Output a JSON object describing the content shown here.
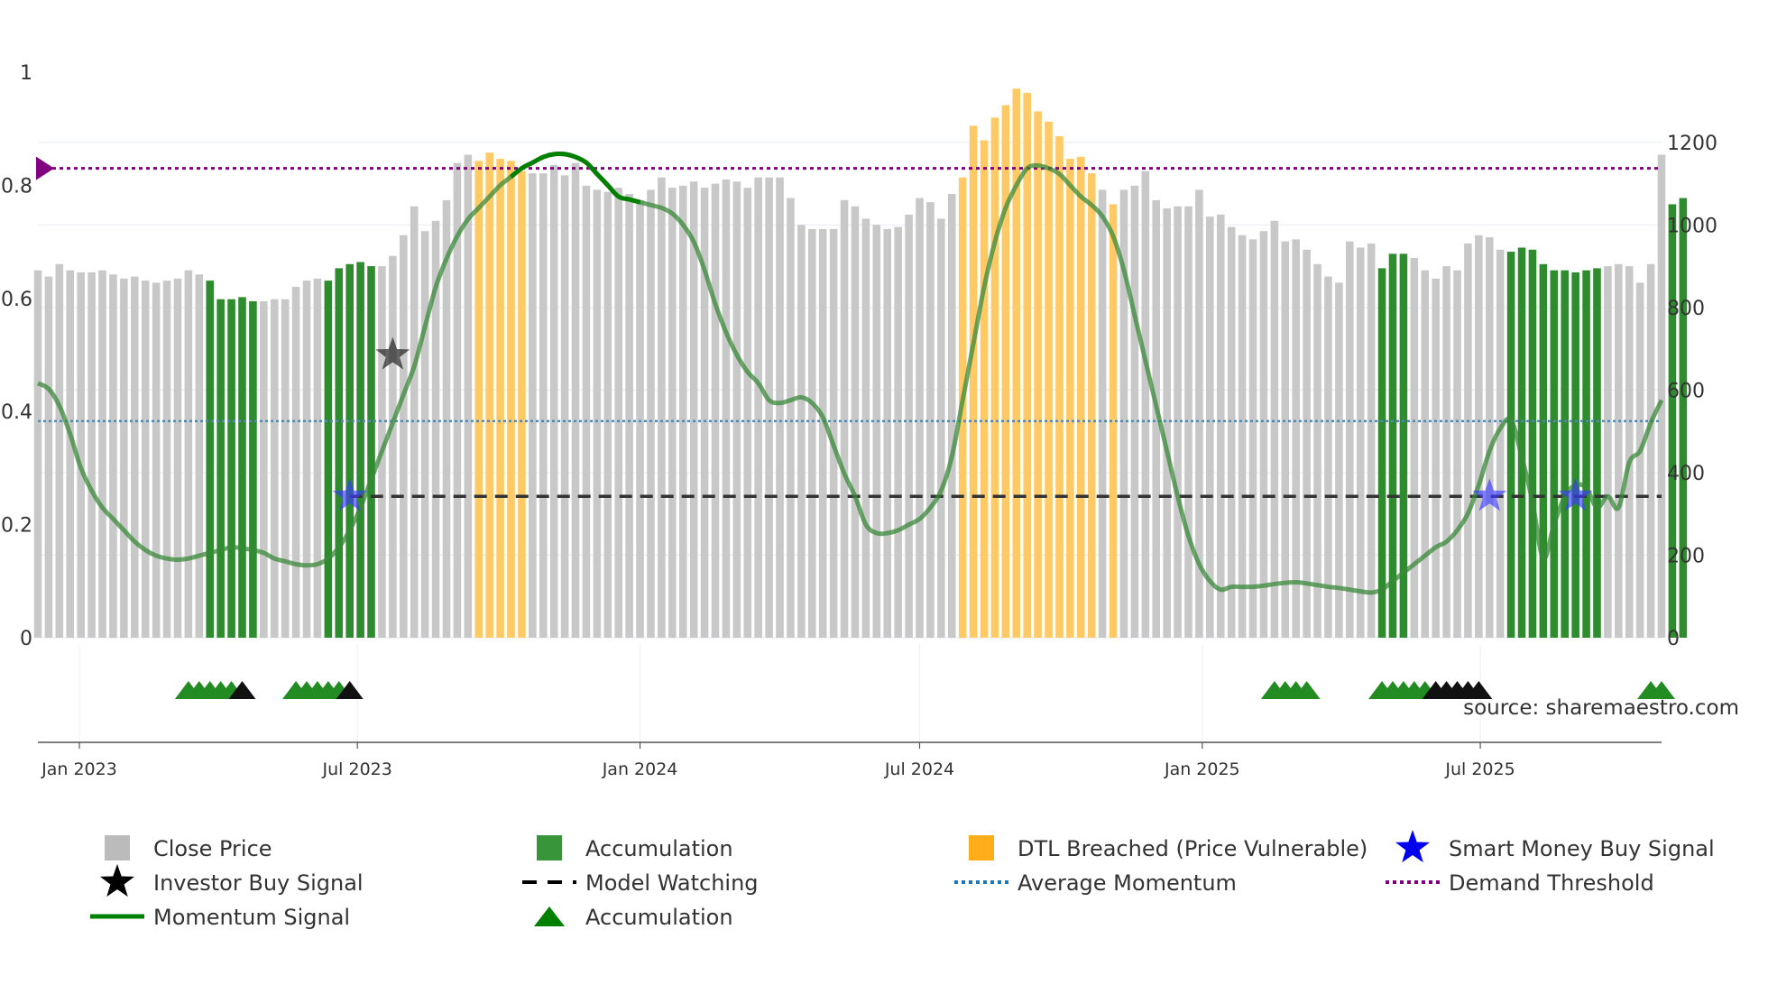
{
  "chart_data": {
    "type": "bar+line",
    "source_label": "source: sharemaestro.com",
    "colors": {
      "close": "#c8c8c8",
      "accumulation": "#2e8b2e",
      "dtl": "#ffc966",
      "momentum": "#3a8a3a",
      "momentum_bright": "#008000",
      "average_momentum": "#5588aa",
      "demand": "#800080",
      "watching": "#333333",
      "smart_star": "#3a3aff",
      "investor_star": "#222222",
      "tri_green": "#228b22",
      "tri_black": "#111111"
    },
    "left_axis": {
      "ticks": [
        0,
        0.2,
        0.4,
        0.6,
        0.8,
        1
      ],
      "labels": [
        "0",
        "0.2",
        "0.4",
        "0.6",
        "0.8",
        "1"
      ],
      "range": [
        0,
        1.0
      ]
    },
    "right_axis": {
      "ticks": [
        0,
        200,
        400,
        600,
        800,
        1000,
        1200
      ],
      "labels": [
        "0",
        "200",
        "400",
        "600",
        "800",
        "1000",
        "1200"
      ],
      "range": [
        0,
        1370
      ]
    },
    "x_axis": {
      "start": "2022-12-05",
      "end": "2025-10-27",
      "ticks": [
        "2023-01-01",
        "2023-07-01",
        "2024-01-01",
        "2024-07-01",
        "2025-01-01",
        "2025-07-01"
      ],
      "labels": [
        "Jan 2023",
        "Jul 2023",
        "Jan 2024",
        "Jul 2024",
        "Jan 2025",
        "Jul 2025"
      ]
    },
    "bar_start": "2022-12-05",
    "bar_step_days": 7,
    "close_prices": [
      890,
      875,
      905,
      890,
      885,
      885,
      890,
      880,
      870,
      875,
      865,
      860,
      865,
      870,
      890,
      880,
      865,
      820,
      820,
      825,
      815,
      815,
      820,
      820,
      850,
      865,
      870,
      865,
      895,
      905,
      910,
      900,
      900,
      925,
      975,
      1045,
      985,
      1010,
      1060,
      1150,
      1170,
      1155,
      1175,
      1160,
      1155,
      1130,
      1125,
      1125,
      1145,
      1120,
      1150,
      1095,
      1085,
      1080,
      1090,
      1075,
      1060,
      1085,
      1115,
      1090,
      1095,
      1105,
      1090,
      1100,
      1110,
      1105,
      1090,
      1115,
      1115,
      1115,
      1065,
      1000,
      990,
      990,
      990,
      1060,
      1045,
      1015,
      1000,
      990,
      995,
      1025,
      1065,
      1055,
      1015,
      1075,
      1115,
      1240,
      1205,
      1260,
      1290,
      1330,
      1320,
      1275,
      1250,
      1215,
      1160,
      1165,
      1125,
      1085,
      1050,
      1085,
      1095,
      1130,
      1060,
      1040,
      1045,
      1045,
      1085,
      1020,
      1025,
      995,
      975,
      965,
      985,
      1010,
      960,
      965,
      940,
      905,
      875,
      860,
      960,
      945,
      955,
      895,
      930,
      930,
      920,
      890,
      870,
      900,
      890,
      955,
      975,
      970,
      940,
      935,
      945,
      940,
      905,
      890,
      890,
      885,
      890,
      895,
      900,
      905,
      900,
      860,
      905,
      1170,
      1050,
      1065
    ],
    "close_tail": [
      1170,
      1050,
      1065
    ],
    "dtl_bars": [
      41,
      42,
      43,
      44,
      45,
      86,
      87,
      88,
      89,
      90,
      91,
      92,
      93,
      94,
      95,
      96,
      97,
      98,
      100
    ],
    "accumulation_bars": [
      16,
      17,
      18,
      19,
      20,
      27,
      28,
      29,
      30,
      31,
      125,
      126,
      127,
      137,
      138,
      139,
      140,
      141,
      142,
      143,
      144,
      145,
      152,
      153
    ],
    "momentum_curve": [
      [
        0,
        0.45
      ],
      [
        1,
        0.44
      ],
      [
        2,
        0.41
      ],
      [
        3,
        0.36
      ],
      [
        4,
        0.3
      ],
      [
        5,
        0.26
      ],
      [
        6,
        0.23
      ],
      [
        7,
        0.21
      ],
      [
        8,
        0.19
      ],
      [
        9,
        0.17
      ],
      [
        10,
        0.155
      ],
      [
        11,
        0.145
      ],
      [
        12,
        0.14
      ],
      [
        13,
        0.138
      ],
      [
        14,
        0.14
      ],
      [
        15,
        0.145
      ],
      [
        16,
        0.15
      ],
      [
        17,
        0.155
      ],
      [
        18,
        0.16
      ],
      [
        19,
        0.158
      ],
      [
        20,
        0.155
      ],
      [
        21,
        0.15
      ],
      [
        22,
        0.14
      ],
      [
        23,
        0.135
      ],
      [
        24,
        0.13
      ],
      [
        25,
        0.128
      ],
      [
        26,
        0.13
      ],
      [
        27,
        0.14
      ],
      [
        28,
        0.16
      ],
      [
        29,
        0.19
      ],
      [
        30,
        0.23
      ],
      [
        31,
        0.28
      ],
      [
        32,
        0.33
      ],
      [
        33,
        0.38
      ],
      [
        34,
        0.43
      ],
      [
        35,
        0.48
      ],
      [
        36,
        0.55
      ],
      [
        37,
        0.62
      ],
      [
        38,
        0.67
      ],
      [
        39,
        0.71
      ],
      [
        40,
        0.74
      ],
      [
        41,
        0.76
      ],
      [
        42,
        0.78
      ],
      [
        43,
        0.8
      ],
      [
        44,
        0.815
      ],
      [
        45,
        0.83
      ],
      [
        46,
        0.84
      ],
      [
        47,
        0.85
      ],
      [
        48,
        0.855
      ],
      [
        49,
        0.855
      ],
      [
        50,
        0.85
      ],
      [
        51,
        0.84
      ],
      [
        52,
        0.82
      ],
      [
        53,
        0.8
      ],
      [
        54,
        0.78
      ],
      [
        55,
        0.775
      ],
      [
        56,
        0.77
      ],
      [
        57,
        0.765
      ],
      [
        58,
        0.76
      ],
      [
        59,
        0.75
      ],
      [
        60,
        0.73
      ],
      [
        61,
        0.7
      ],
      [
        62,
        0.65
      ],
      [
        63,
        0.59
      ],
      [
        64,
        0.54
      ],
      [
        65,
        0.5
      ],
      [
        66,
        0.47
      ],
      [
        67,
        0.45
      ],
      [
        68,
        0.42
      ],
      [
        69,
        0.415
      ],
      [
        70,
        0.42
      ],
      [
        71,
        0.425
      ],
      [
        72,
        0.415
      ],
      [
        73,
        0.39
      ],
      [
        74,
        0.34
      ],
      [
        75,
        0.29
      ],
      [
        76,
        0.25
      ],
      [
        77,
        0.2
      ],
      [
        78,
        0.185
      ],
      [
        79,
        0.185
      ],
      [
        80,
        0.19
      ],
      [
        81,
        0.2
      ],
      [
        82,
        0.21
      ],
      [
        83,
        0.23
      ],
      [
        84,
        0.26
      ],
      [
        85,
        0.32
      ],
      [
        86,
        0.42
      ],
      [
        87,
        0.52
      ],
      [
        88,
        0.62
      ],
      [
        89,
        0.7
      ],
      [
        90,
        0.76
      ],
      [
        91,
        0.8
      ],
      [
        92,
        0.83
      ],
      [
        93,
        0.835
      ],
      [
        94,
        0.83
      ],
      [
        95,
        0.82
      ],
      [
        96,
        0.8
      ],
      [
        97,
        0.78
      ],
      [
        98,
        0.765
      ],
      [
        99,
        0.745
      ],
      [
        100,
        0.71
      ],
      [
        101,
        0.65
      ],
      [
        102,
        0.57
      ],
      [
        103,
        0.49
      ],
      [
        104,
        0.41
      ],
      [
        105,
        0.33
      ],
      [
        106,
        0.25
      ],
      [
        107,
        0.18
      ],
      [
        108,
        0.13
      ],
      [
        109,
        0.1
      ],
      [
        110,
        0.085
      ],
      [
        111,
        0.09
      ],
      [
        112,
        0.09
      ],
      [
        113,
        0.09
      ],
      [
        114,
        0.092
      ],
      [
        115,
        0.095
      ],
      [
        116,
        0.097
      ],
      [
        117,
        0.098
      ],
      [
        118,
        0.096
      ],
      [
        119,
        0.093
      ],
      [
        120,
        0.09
      ],
      [
        121,
        0.088
      ],
      [
        122,
        0.085
      ],
      [
        123,
        0.082
      ],
      [
        124,
        0.08
      ],
      [
        125,
        0.085
      ],
      [
        126,
        0.1
      ],
      [
        127,
        0.115
      ],
      [
        128,
        0.13
      ],
      [
        129,
        0.145
      ],
      [
        130,
        0.16
      ],
      [
        131,
        0.17
      ],
      [
        132,
        0.19
      ],
      [
        133,
        0.22
      ],
      [
        134,
        0.27
      ],
      [
        135,
        0.33
      ],
      [
        136,
        0.37
      ],
      [
        137,
        0.385
      ],
      [
        138,
        0.32
      ],
      [
        139,
        0.24
      ],
      [
        140,
        0.14
      ],
      [
        141,
        0.2
      ],
      [
        142,
        0.25
      ],
      [
        143,
        0.27
      ],
      [
        144,
        0.265
      ],
      [
        145,
        0.23
      ],
      [
        146,
        0.25
      ],
      [
        147,
        0.23
      ],
      [
        148,
        0.31
      ],
      [
        149,
        0.33
      ],
      [
        150,
        0.38
      ],
      [
        151,
        0.42
      ]
    ],
    "momentum_bright_range": [
      44,
      56
    ],
    "average_momentum": 0.383,
    "demand_threshold": 0.83,
    "model_watching": {
      "value": 0.25,
      "from_bar": 29
    },
    "investor_buy_signals": [
      {
        "bar": 33,
        "value": 0.5
      }
    ],
    "smart_money_buy_signals": [
      {
        "bar": 29,
        "value": 0.25
      },
      {
        "bar": 135,
        "value": 0.25
      },
      {
        "bar": 143,
        "value": 0.25
      }
    ],
    "accumulation_markers_green": [
      14,
      15,
      16,
      17,
      18,
      24,
      25,
      26,
      27,
      28,
      115,
      116,
      117,
      118,
      125,
      126,
      127,
      128,
      129,
      150,
      151
    ],
    "accumulation_markers_black": [
      19,
      29,
      130,
      131,
      132,
      133,
      134
    ],
    "legend": [
      {
        "label": "Close Price",
        "marker": "square",
        "color": "#bbbbbb"
      },
      {
        "label": "Accumulation",
        "marker": "square",
        "color": "#228b22"
      },
      {
        "label": "DTL Breached (Price Vulnerable)",
        "marker": "square",
        "color": "#ffa500"
      },
      {
        "label": "Smart Money Buy Signal",
        "marker": "star",
        "color": "#0000ee"
      },
      {
        "label": "Investor Buy Signal",
        "marker": "star",
        "color": "#000000"
      },
      {
        "label": "Model Watching",
        "marker": "dash",
        "color": "#000000"
      },
      {
        "label": "Average Momentum",
        "marker": "dot",
        "color": "#1f77b4"
      },
      {
        "label": "Demand Threshold",
        "marker": "dot",
        "color": "#800080"
      },
      {
        "label": "Momentum Signal",
        "marker": "line",
        "color": "#008000"
      },
      {
        "label": "Accumulation",
        "marker": "triangle",
        "color": "#008000"
      }
    ]
  }
}
